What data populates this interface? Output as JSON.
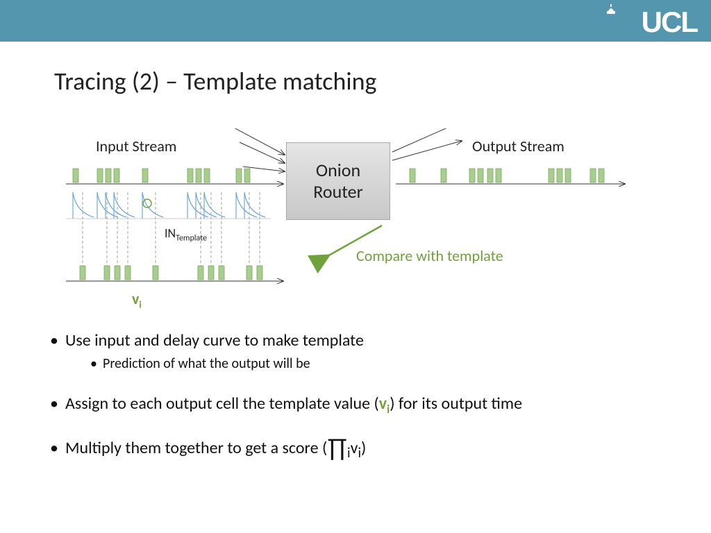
{
  "header": {
    "bg_color": "#5596af",
    "logo_text": "UCL",
    "logo_color": "#ffffff"
  },
  "title": "Tracing (2) – Template matching",
  "diagram": {
    "input_label": "Input Stream",
    "output_label": "Output Stream",
    "router_line1": "Onion",
    "router_line2": "Router",
    "router_bg": "#d6d6d6",
    "in_template_label": "IN",
    "in_template_sub": "Template",
    "vi_label": "v",
    "vi_sub": "i",
    "compare_label": "Compare with template",
    "packet_color": "#a7ce8e",
    "packet_border": "#7fa65f",
    "curve_color": "#6da9e0",
    "dash_color": "#a0a0a0",
    "arrow_color": "#6fa23b",
    "input_packets_x": [
      15,
      50,
      62,
      74,
      115,
      180,
      192,
      204,
      250,
      262
    ],
    "curve_starts_x": [
      15,
      50,
      62,
      74,
      115,
      180,
      192,
      204,
      250,
      262
    ],
    "template_packets_x": [
      25,
      60,
      75,
      90,
      130,
      195,
      210,
      225,
      265,
      280
    ],
    "output_packets_x": [
      500,
      545,
      586,
      598,
      612,
      624,
      700,
      712,
      724,
      760,
      772
    ]
  },
  "bullets": {
    "b1": "Use input and delay curve to make template",
    "b1_sub": "Prediction of what the output will be",
    "b2_pre": "Assign to each output cell the template value (",
    "b2_vi": "v",
    "b2_vi_sub": "i",
    "b2_post": ") for its output time",
    "b3_pre": "Multiply them together to get a score (",
    "b3_prod": "∏",
    "b3_sub": "i",
    "b3_vi": "v",
    "b3_vi_sub": "i",
    "b3_post": ")"
  }
}
